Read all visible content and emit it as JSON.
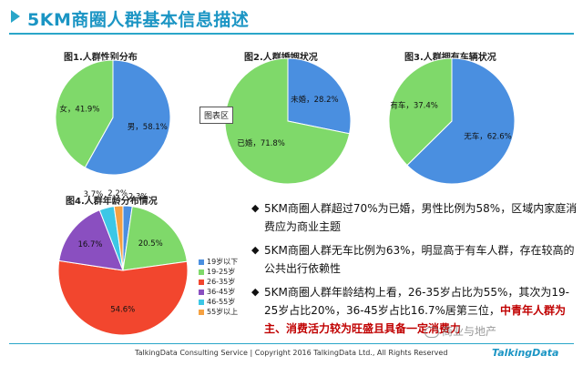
{
  "header": {
    "title": "5KM商圈人群基本信息描述"
  },
  "tooltip": "图表区",
  "chart_data": [
    {
      "type": "pie",
      "title": "图1.人群性别分布",
      "slices": [
        {
          "name": "男",
          "value": 58.1,
          "label": "男，58.1%",
          "color": "#4a8fe0"
        },
        {
          "name": "女",
          "value": 41.9,
          "label": "女，41.9%",
          "color": "#7fd96a"
        }
      ]
    },
    {
      "type": "pie",
      "title": "图2.人群婚姻状况",
      "slices": [
        {
          "name": "未婚",
          "value": 28.2,
          "label": "未婚，28.2%",
          "color": "#4a8fe0"
        },
        {
          "name": "已婚",
          "value": 71.8,
          "label": "已婚，71.8%",
          "color": "#7fd96a"
        }
      ]
    },
    {
      "type": "pie",
      "title": "图3.人群拥有车辆状况",
      "slices": [
        {
          "name": "无车",
          "value": 62.6,
          "label": "无车，62.6%",
          "color": "#4a8fe0"
        },
        {
          "name": "有车",
          "value": 37.4,
          "label": "有车，37.4%",
          "color": "#7fd96a"
        }
      ]
    },
    {
      "type": "pie",
      "title": "图4.人群年龄分布情况",
      "legend_position": "right",
      "slices": [
        {
          "name": "19岁以下",
          "value": 2.3,
          "label": "2.3%",
          "color": "#4a8fe0"
        },
        {
          "name": "19-25岁",
          "value": 20.5,
          "label": "20.5%",
          "color": "#7fd96a"
        },
        {
          "name": "26-35岁",
          "value": 54.6,
          "label": "54.6%",
          "color": "#f2462e"
        },
        {
          "name": "36-45岁",
          "value": 16.7,
          "label": "16.7%",
          "color": "#8a4fc0"
        },
        {
          "name": "46-55岁",
          "value": 3.7,
          "label": "3.7%",
          "color": "#3cc7e6"
        },
        {
          "name": "55岁以上",
          "value": 2.2,
          "label": "2.2%",
          "color": "#f5a142"
        }
      ]
    }
  ],
  "bullets": [
    {
      "text": "5KM商圈人群超过70%为已婚，男性比例为58%，区域内家庭消费应为商业主题"
    },
    {
      "text": "5KM商圈人群无车比例为63%，明显高于有车人群，存在较高的公共出行依赖性"
    },
    {
      "text": "5KM商圈人群年龄结构上看，26-35岁占比为55%，其次为19-25岁占比20%，36-45岁占比16.7%居第三位，",
      "highlight": "中青年人群为主、消费活力较为旺盛且具备一定消费力"
    }
  ],
  "footer": {
    "copyright": "TalkingData Consulting Service  |  Copyright 2016 TalkingData Ltd., All Rights Reserved",
    "brand": "TalkingData"
  },
  "watermark": "商业与地产"
}
